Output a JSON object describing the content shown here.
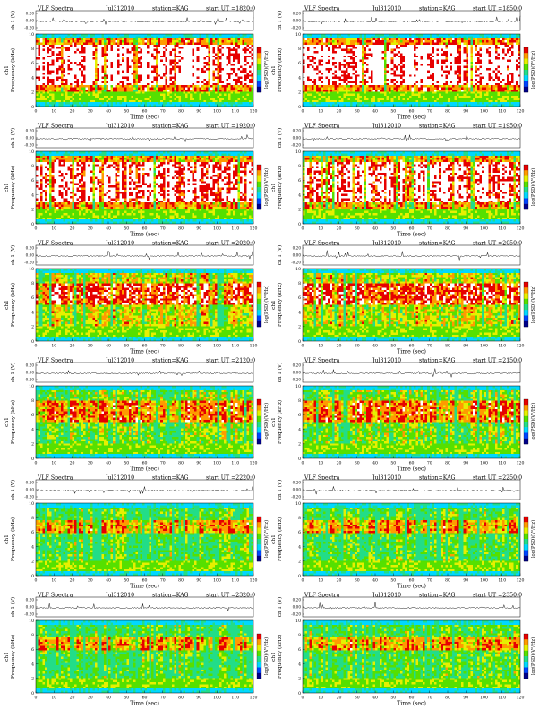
{
  "page": {
    "title_prefix": "VLF Spectra",
    "x_axis_title": "Time  (sec)",
    "ch_label": "ch 1 (V)",
    "y_axis_title": "Frequency  (kHz)",
    "y_axis_ch": "ch1",
    "colorbar_label": "log(PSD)(V²/Hz)"
  },
  "chart_data": [
    {
      "type": "heatmap",
      "title": "VLF Spectra",
      "date": "Jul312010",
      "station": "station=KAG",
      "start_ut": "start  UT  =1820:0",
      "xlim": [
        0,
        120
      ],
      "xticks": [
        0,
        10,
        20,
        30,
        40,
        50,
        60,
        70,
        80,
        90,
        100,
        110,
        120
      ],
      "xlabel": "Time  (sec)",
      "ylabel": "Frequency  (kHz)",
      "ylim": [
        0,
        10
      ],
      "yticks": [
        0,
        2,
        4,
        6,
        8,
        10
      ],
      "ch_ylabel": "ch 1 (V)",
      "ch_yticks": [
        "0.20",
        "0.00",
        "-0.20"
      ],
      "colorbar_label": "log(PSD)(V²/Hz)",
      "colors": [
        "#00008b",
        "#0044ff",
        "#00d8ff",
        "#22dd88",
        "#55e000",
        "#e6f000",
        "#ff9a00",
        "#e60000",
        "#ffffff"
      ],
      "band_lower_khz": 2,
      "band_upper_khz": 9,
      "activity": 0.95,
      "red_band": [
        3,
        8.5
      ]
    },
    {
      "type": "heatmap",
      "title": "VLF Spectra",
      "date": "Jul312010",
      "station": "station=KAG",
      "start_ut": "start  UT  =1850:0",
      "xlim": [
        0,
        120
      ],
      "xticks": [
        0,
        10,
        20,
        30,
        40,
        50,
        60,
        70,
        80,
        90,
        100,
        110,
        120
      ],
      "xlabel": "Time  (sec)",
      "ylabel": "Frequency  (kHz)",
      "ylim": [
        0,
        10
      ],
      "yticks": [
        0,
        2,
        4,
        6,
        8,
        10
      ],
      "ch_ylabel": "ch 1 (V)",
      "ch_yticks": [
        "0.20",
        "0.00",
        "-0.20"
      ],
      "colorbar_label": "log(PSD)(V²/Hz)",
      "colors": [
        "#00008b",
        "#0044ff",
        "#00d8ff",
        "#22dd88",
        "#55e000",
        "#e6f000",
        "#ff9a00",
        "#e60000",
        "#ffffff"
      ],
      "band_lower_khz": 2,
      "band_upper_khz": 9,
      "activity": 0.93,
      "red_band": [
        3,
        8.5
      ]
    },
    {
      "type": "heatmap",
      "title": "VLF Spectra",
      "date": "Jul312010",
      "station": "station=KAG",
      "start_ut": "start  UT  =1920:0",
      "xlim": [
        0,
        120
      ],
      "xticks": [
        0,
        10,
        20,
        30,
        40,
        50,
        60,
        70,
        80,
        90,
        100,
        110,
        120
      ],
      "xlabel": "Time  (sec)",
      "ylabel": "Frequency  (kHz)",
      "ylim": [
        0,
        10
      ],
      "yticks": [
        0,
        2,
        4,
        6,
        8,
        10
      ],
      "ch_ylabel": "ch 1 (V)",
      "ch_yticks": [
        "0.20",
        "0.00",
        "-0.20"
      ],
      "colorbar_label": "log(PSD)(V²/Hz)",
      "colors": [
        "#00008b",
        "#0044ff",
        "#00d8ff",
        "#22dd88",
        "#55e000",
        "#e6f000",
        "#ff9a00",
        "#e60000",
        "#ffffff"
      ],
      "band_lower_khz": 2,
      "band_upper_khz": 9,
      "activity": 0.85,
      "red_band": [
        3,
        8.5
      ]
    },
    {
      "type": "heatmap",
      "title": "VLF Spectra",
      "date": "Jul312010",
      "station": "station=KAG",
      "start_ut": "start  UT  =1950:0",
      "xlim": [
        0,
        120
      ],
      "xticks": [
        0,
        10,
        20,
        30,
        40,
        50,
        60,
        70,
        80,
        90,
        100,
        110,
        120
      ],
      "xlabel": "Time  (sec)",
      "ylabel": "Frequency  (kHz)",
      "ylim": [
        0,
        10
      ],
      "yticks": [
        0,
        2,
        4,
        6,
        8,
        10
      ],
      "ch_ylabel": "ch 1 (V)",
      "ch_yticks": [
        "0.20",
        "0.00",
        "-0.20"
      ],
      "colorbar_label": "log(PSD)(V²/Hz)",
      "colors": [
        "#00008b",
        "#0044ff",
        "#00d8ff",
        "#22dd88",
        "#55e000",
        "#e6f000",
        "#ff9a00",
        "#e60000",
        "#ffffff"
      ],
      "band_lower_khz": 2,
      "band_upper_khz": 9,
      "activity": 0.82,
      "red_band": [
        3,
        8.5
      ]
    },
    {
      "type": "heatmap",
      "title": "VLF Spectra",
      "date": "Jul312010",
      "station": "station=KAG",
      "start_ut": "start  UT  =2020:0",
      "xlim": [
        0,
        120
      ],
      "xticks": [
        0,
        10,
        20,
        30,
        40,
        50,
        60,
        70,
        80,
        90,
        100,
        110,
        120
      ],
      "xlabel": "Time  (sec)",
      "ylabel": "Frequency  (kHz)",
      "ylim": [
        0,
        10
      ],
      "yticks": [
        0,
        2,
        4,
        6,
        8,
        10
      ],
      "ch_ylabel": "ch 1 (V)",
      "ch_yticks": [
        "0.20",
        "0.00",
        "-0.20"
      ],
      "colorbar_label": "log(PSD)(V²/Hz)",
      "colors": [
        "#00008b",
        "#0044ff",
        "#00d8ff",
        "#22dd88",
        "#55e000",
        "#e6f000",
        "#ff9a00",
        "#e60000",
        "#ffffff"
      ],
      "band_lower_khz": 2,
      "band_upper_khz": 9,
      "activity": 0.62,
      "red_band": [
        5,
        8
      ]
    },
    {
      "type": "heatmap",
      "title": "VLF Spectra",
      "date": "Jul312010",
      "station": "station=KAG",
      "start_ut": "start  UT  =2050:0",
      "xlim": [
        0,
        120
      ],
      "xticks": [
        0,
        10,
        20,
        30,
        40,
        50,
        60,
        70,
        80,
        90,
        100,
        110,
        120
      ],
      "xlabel": "Time  (sec)",
      "ylabel": "Frequency  (kHz)",
      "ylim": [
        0,
        10
      ],
      "yticks": [
        0,
        2,
        4,
        6,
        8,
        10
      ],
      "ch_ylabel": "ch 1 (V)",
      "ch_yticks": [
        "0.20",
        "0.00",
        "-0.20"
      ],
      "colorbar_label": "log(PSD)(V²/Hz)",
      "colors": [
        "#00008b",
        "#0044ff",
        "#00d8ff",
        "#22dd88",
        "#55e000",
        "#e6f000",
        "#ff9a00",
        "#e60000",
        "#ffffff"
      ],
      "band_lower_khz": 2,
      "band_upper_khz": 9,
      "activity": 0.6,
      "red_band": [
        5,
        8
      ]
    },
    {
      "type": "heatmap",
      "title": "VLF Spectra",
      "date": "Jul312010",
      "station": "station=KAG",
      "start_ut": "start  UT  =2120:0",
      "xlim": [
        0,
        120
      ],
      "xticks": [
        0,
        10,
        20,
        30,
        40,
        50,
        60,
        70,
        80,
        90,
        100,
        110,
        120
      ],
      "xlabel": "Time  (sec)",
      "ylabel": "Frequency  (kHz)",
      "ylim": [
        0,
        10
      ],
      "yticks": [
        0,
        2,
        4,
        6,
        8,
        10
      ],
      "ch_ylabel": "ch 1 (V)",
      "ch_yticks": [
        "0.20",
        "0.00",
        "-0.20"
      ],
      "colorbar_label": "log(PSD)(V²/Hz)",
      "colors": [
        "#00008b",
        "#0044ff",
        "#00d8ff",
        "#22dd88",
        "#55e000",
        "#e6f000",
        "#ff9a00",
        "#e60000",
        "#ffffff"
      ],
      "band_lower_khz": 2,
      "band_upper_khz": 9,
      "activity": 0.45,
      "red_band": [
        5,
        8
      ]
    },
    {
      "type": "heatmap",
      "title": "VLF Spectra",
      "date": "Jul312010",
      "station": "station=KAG",
      "start_ut": "start  UT  =2150:0",
      "xlim": [
        0,
        120
      ],
      "xticks": [
        0,
        10,
        20,
        30,
        40,
        50,
        60,
        70,
        80,
        90,
        100,
        110,
        120
      ],
      "xlabel": "Time  (sec)",
      "ylabel": "Frequency  (kHz)",
      "ylim": [
        0,
        10
      ],
      "yticks": [
        0,
        2,
        4,
        6,
        8,
        10
      ],
      "ch_ylabel": "ch 1 (V)",
      "ch_yticks": [
        "0.20",
        "0.00",
        "-0.20"
      ],
      "colorbar_label": "log(PSD)(V²/Hz)",
      "colors": [
        "#00008b",
        "#0044ff",
        "#00d8ff",
        "#22dd88",
        "#55e000",
        "#e6f000",
        "#ff9a00",
        "#e60000",
        "#ffffff"
      ],
      "band_lower_khz": 2,
      "band_upper_khz": 9,
      "activity": 0.45,
      "red_band": [
        5,
        8
      ]
    },
    {
      "type": "heatmap",
      "title": "VLF Spectra",
      "date": "Jul312010",
      "station": "station=KAG",
      "start_ut": "start  UT  =2220:0",
      "xlim": [
        0,
        120
      ],
      "xticks": [
        0,
        10,
        20,
        30,
        40,
        50,
        60,
        70,
        80,
        90,
        100,
        110,
        120
      ],
      "xlabel": "Time  (sec)",
      "ylabel": "Frequency  (kHz)",
      "ylim": [
        0,
        10
      ],
      "yticks": [
        0,
        2,
        4,
        6,
        8,
        10
      ],
      "ch_ylabel": "ch 1 (V)",
      "ch_yticks": [
        "0.20",
        "0.00",
        "-0.20"
      ],
      "colorbar_label": "log(PSD)(V²/Hz)",
      "colors": [
        "#00008b",
        "#0044ff",
        "#00d8ff",
        "#22dd88",
        "#55e000",
        "#e6f000",
        "#ff9a00",
        "#e60000",
        "#ffffff"
      ],
      "band_lower_khz": 2,
      "band_upper_khz": 9,
      "activity": 0.35,
      "red_band": [
        6,
        7.5
      ]
    },
    {
      "type": "heatmap",
      "title": "VLF Spectra",
      "date": "Jul312010",
      "station": "station=KAG",
      "start_ut": "start  UT  =2250:0",
      "xlim": [
        0,
        120
      ],
      "xticks": [
        0,
        10,
        20,
        30,
        40,
        50,
        60,
        70,
        80,
        90,
        100,
        110,
        120
      ],
      "xlabel": "Time  (sec)",
      "ylabel": "Frequency  (kHz)",
      "ylim": [
        0,
        10
      ],
      "yticks": [
        0,
        2,
        4,
        6,
        8,
        10
      ],
      "ch_ylabel": "ch 1 (V)",
      "ch_yticks": [
        "0.20",
        "0.00",
        "-0.20"
      ],
      "colorbar_label": "log(PSD)(V²/Hz)",
      "colors": [
        "#00008b",
        "#0044ff",
        "#00d8ff",
        "#22dd88",
        "#55e000",
        "#e6f000",
        "#ff9a00",
        "#e60000",
        "#ffffff"
      ],
      "band_lower_khz": 2,
      "band_upper_khz": 9,
      "activity": 0.33,
      "red_band": [
        6,
        7.5
      ]
    },
    {
      "type": "heatmap",
      "title": "VLF Spectra",
      "date": "Jul312010",
      "station": "station=KAG",
      "start_ut": "start  UT  =2320:0",
      "xlim": [
        0,
        120
      ],
      "xticks": [
        0,
        10,
        20,
        30,
        40,
        50,
        60,
        70,
        80,
        90,
        100,
        110,
        120
      ],
      "xlabel": "Time  (sec)",
      "ylabel": "Frequency  (kHz)",
      "ylim": [
        0,
        10
      ],
      "yticks": [
        0,
        2,
        4,
        6,
        8,
        10
      ],
      "ch_ylabel": "ch 1 (V)",
      "ch_yticks": [
        "0.20",
        "0.00",
        "-0.20"
      ],
      "colorbar_label": "log(PSD)(V²/Hz)",
      "colors": [
        "#00008b",
        "#0044ff",
        "#00d8ff",
        "#22dd88",
        "#55e000",
        "#e6f000",
        "#ff9a00",
        "#e60000",
        "#ffffff"
      ],
      "band_lower_khz": 2,
      "band_upper_khz": 9,
      "activity": 0.3,
      "red_band": [
        6,
        7.5
      ]
    },
    {
      "type": "heatmap",
      "title": "VLF Spectra",
      "date": "Jul312010",
      "station": "station=KAG",
      "start_ut": "start  UT  =2350:0",
      "xlim": [
        0,
        120
      ],
      "xticks": [
        0,
        10,
        20,
        30,
        40,
        50,
        60,
        70,
        80,
        90,
        100,
        110,
        120
      ],
      "xlabel": "Time  (sec)",
      "ylabel": "Frequency  (kHz)",
      "ylim": [
        0,
        10
      ],
      "yticks": [
        0,
        2,
        4,
        6,
        8,
        10
      ],
      "ch_ylabel": "ch 1 (V)",
      "ch_yticks": [
        "0.20",
        "0.00",
        "-0.20"
      ],
      "colorbar_label": "log(PSD)(V²/Hz)",
      "colors": [
        "#00008b",
        "#0044ff",
        "#00d8ff",
        "#22dd88",
        "#55e000",
        "#e6f000",
        "#ff9a00",
        "#e60000",
        "#ffffff"
      ],
      "band_lower_khz": 2,
      "band_upper_khz": 9,
      "activity": 0.33,
      "red_band": [
        6,
        7.5
      ]
    }
  ]
}
